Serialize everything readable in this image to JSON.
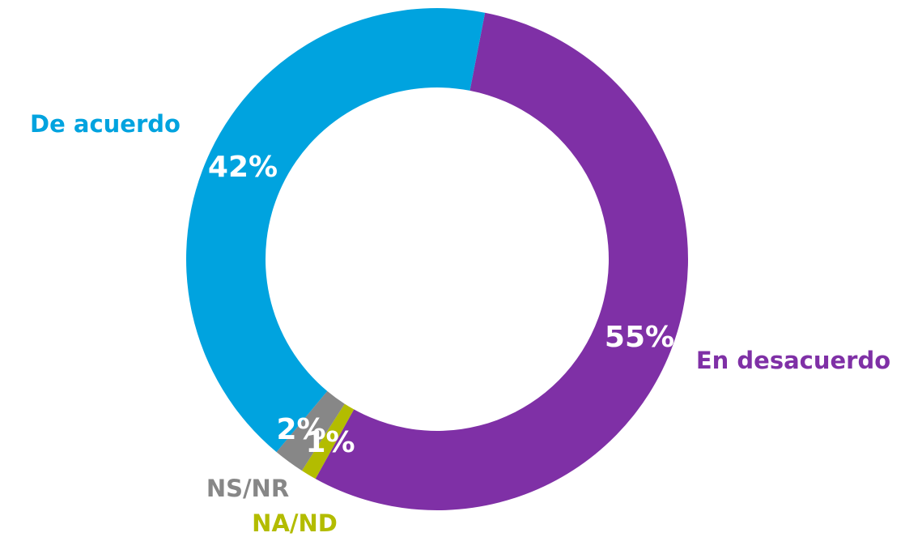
{
  "chart_data": {
    "type": "donut",
    "categories": [
      "En desacuerdo",
      "NA/ND",
      "NS/NR",
      "De acuerdo"
    ],
    "values": [
      55,
      1,
      2,
      42
    ],
    "value_labels": [
      "55%",
      "1%",
      "2%",
      "42%"
    ],
    "colors": [
      "#7f30a6",
      "#b3bc00",
      "#878787",
      "#00a3df"
    ]
  }
}
